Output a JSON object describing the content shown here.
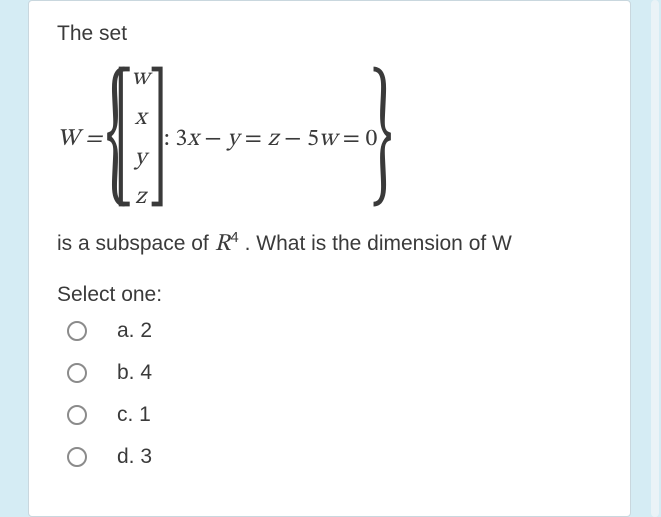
{
  "question": {
    "intro_text": "The set",
    "lhs": "W =",
    "vector_entries": [
      "w",
      "x",
      "y",
      "z"
    ],
    "condition_text": ": 3x − y = z − 5w = 0",
    "tail_before_R": "is a subspace of ",
    "R_symbol": "R",
    "R_exponent": "4",
    "tail_after_R": " . What is the dimension of W"
  },
  "prompt": "Select one:",
  "options": [
    {
      "key": "a",
      "label": "a. 2"
    },
    {
      "key": "b",
      "label": "b. 4"
    },
    {
      "key": "c",
      "label": "c. 1"
    },
    {
      "key": "d",
      "label": "d. 3"
    }
  ],
  "colors": {
    "page_bg": "#d5ecf4",
    "card_bg": "#ffffff",
    "card_border": "#c9d7de",
    "text": "#3a3a3a",
    "radio_border": "#8b8b8b"
  }
}
